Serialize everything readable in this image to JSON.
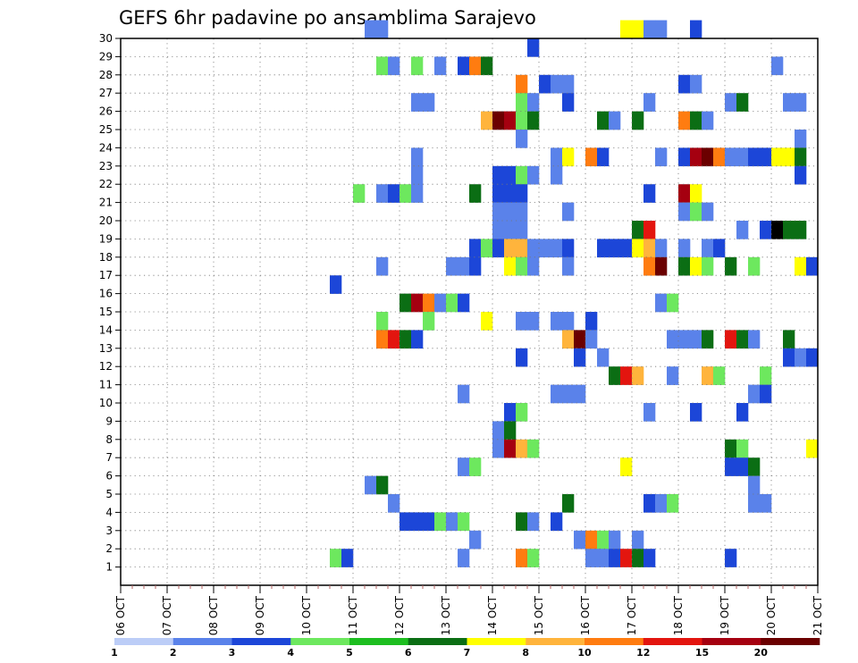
{
  "chart_data": {
    "type": "heatmap",
    "title": "GEFS 6hr padavine po ansamblima Sarajevo",
    "xlabel": "",
    "ylabel": "",
    "x_ticks": [
      "06 OCT",
      "07 OCT",
      "08 OCT",
      "09 OCT",
      "10 OCT",
      "11 OCT",
      "12 OCT",
      "13 OCT",
      "14 OCT",
      "15 OCT",
      "16 OCT",
      "17 OCT",
      "18 OCT",
      "19 OCT",
      "20 OCT",
      "21 OCT"
    ],
    "xlim": [
      "06 OCT 00Z",
      "21 OCT 00Z"
    ],
    "ylim": [
      0,
      30
    ],
    "y_ticks": [
      1,
      2,
      3,
      4,
      5,
      6,
      7,
      8,
      9,
      10,
      11,
      12,
      13,
      14,
      15,
      16,
      17,
      18,
      19,
      20,
      21,
      22,
      23,
      24,
      25,
      26,
      27,
      28,
      29,
      30
    ],
    "y_ticks_text": [
      "1",
      "2",
      "3",
      "4",
      "5",
      "6",
      "7",
      "8",
      "9",
      "10",
      "11",
      "12",
      "13",
      "14",
      "15",
      "16",
      "17",
      "18",
      "19",
      "20",
      "21",
      "22",
      "23",
      "24",
      "25",
      "26",
      "27",
      "28",
      "29",
      "30"
    ],
    "grid": true,
    "steps_per_day": 4,
    "colorbar": {
      "ticks": [
        "1",
        "2",
        "3",
        "4",
        "5",
        "6",
        "7",
        "8",
        "10",
        "12",
        "15",
        "20"
      ],
      "colors": [
        "#bccdf7",
        "#5a82ea",
        "#1c46d8",
        "#6de85e",
        "#1dbe20",
        "#0b6e14",
        "#ffff00",
        "#ffb43c",
        "#ff7c10",
        "#e3150f",
        "#a50010",
        "#6b0000"
      ]
    },
    "cells": [
      [
        30,
        21,
        1
      ],
      [
        30,
        22,
        1
      ],
      [
        30,
        43,
        6
      ],
      [
        30,
        44,
        6
      ],
      [
        30,
        45,
        1
      ],
      [
        30,
        46,
        1
      ],
      [
        30,
        49,
        2
      ],
      [
        29,
        35,
        2
      ],
      [
        28,
        22,
        3
      ],
      [
        28,
        23,
        1
      ],
      [
        28,
        25,
        3
      ],
      [
        28,
        27,
        1
      ],
      [
        28,
        29,
        2
      ],
      [
        28,
        30,
        8
      ],
      [
        28,
        31,
        5
      ],
      [
        28,
        56,
        1
      ],
      [
        27,
        34,
        8
      ],
      [
        27,
        36,
        2
      ],
      [
        27,
        37,
        1
      ],
      [
        27,
        38,
        1
      ],
      [
        27,
        48,
        2
      ],
      [
        27,
        49,
        1
      ],
      [
        26,
        25,
        1
      ],
      [
        26,
        26,
        1
      ],
      [
        26,
        34,
        3
      ],
      [
        26,
        35,
        1
      ],
      [
        26,
        38,
        2
      ],
      [
        26,
        45,
        1
      ],
      [
        26,
        52,
        1
      ],
      [
        26,
        53,
        5
      ],
      [
        26,
        57,
        1
      ],
      [
        26,
        58,
        1
      ],
      [
        25,
        31,
        7
      ],
      [
        25,
        32,
        11
      ],
      [
        25,
        33,
        10
      ],
      [
        25,
        34,
        3
      ],
      [
        25,
        35,
        5
      ],
      [
        25,
        41,
        5
      ],
      [
        25,
        42,
        1
      ],
      [
        25,
        44,
        5
      ],
      [
        25,
        48,
        8
      ],
      [
        25,
        49,
        5
      ],
      [
        25,
        50,
        1
      ],
      [
        24,
        34,
        1
      ],
      [
        24,
        58,
        1
      ],
      [
        23,
        25,
        1
      ],
      [
        23,
        37,
        1
      ],
      [
        23,
        38,
        6
      ],
      [
        23,
        40,
        8
      ],
      [
        23,
        41,
        2
      ],
      [
        23,
        46,
        1
      ],
      [
        23,
        48,
        2
      ],
      [
        23,
        49,
        10
      ],
      [
        23,
        50,
        11
      ],
      [
        23,
        51,
        8
      ],
      [
        23,
        52,
        1
      ],
      [
        23,
        53,
        1
      ],
      [
        23,
        54,
        2
      ],
      [
        23,
        55,
        2
      ],
      [
        23,
        56,
        6
      ],
      [
        23,
        57,
        6
      ],
      [
        23,
        58,
        5
      ],
      [
        22,
        25,
        1
      ],
      [
        22,
        32,
        2
      ],
      [
        22,
        33,
        2
      ],
      [
        22,
        34,
        3
      ],
      [
        22,
        35,
        1
      ],
      [
        22,
        37,
        1
      ],
      [
        22,
        58,
        2
      ],
      [
        21,
        20,
        3
      ],
      [
        21,
        22,
        1
      ],
      [
        21,
        23,
        2
      ],
      [
        21,
        24,
        3
      ],
      [
        21,
        25,
        1
      ],
      [
        21,
        30,
        5
      ],
      [
        21,
        32,
        2
      ],
      [
        21,
        33,
        2
      ],
      [
        21,
        34,
        2
      ],
      [
        21,
        45,
        2
      ],
      [
        21,
        48,
        10
      ],
      [
        21,
        49,
        6
      ],
      [
        20,
        32,
        1
      ],
      [
        20,
        33,
        1
      ],
      [
        20,
        34,
        1
      ],
      [
        20,
        38,
        1
      ],
      [
        20,
        48,
        1
      ],
      [
        20,
        49,
        3
      ],
      [
        20,
        50,
        1
      ],
      [
        19,
        32,
        1
      ],
      [
        19,
        33,
        1
      ],
      [
        19,
        34,
        1
      ],
      [
        19,
        44,
        5
      ],
      [
        19,
        45,
        9
      ],
      [
        19,
        53,
        1
      ],
      [
        19,
        55,
        2
      ],
      [
        19,
        56,
        12
      ],
      [
        19,
        57,
        5
      ],
      [
        19,
        58,
        5
      ],
      [
        18,
        30,
        2
      ],
      [
        18,
        31,
        3
      ],
      [
        18,
        32,
        2
      ],
      [
        18,
        33,
        7
      ],
      [
        18,
        34,
        7
      ],
      [
        18,
        35,
        1
      ],
      [
        18,
        36,
        1
      ],
      [
        18,
        37,
        1
      ],
      [
        18,
        38,
        2
      ],
      [
        18,
        41,
        2
      ],
      [
        18,
        42,
        2
      ],
      [
        18,
        43,
        2
      ],
      [
        18,
        44,
        6
      ],
      [
        18,
        45,
        7
      ],
      [
        18,
        46,
        1
      ],
      [
        18,
        48,
        1
      ],
      [
        18,
        50,
        1
      ],
      [
        18,
        51,
        2
      ],
      [
        17,
        22,
        1
      ],
      [
        17,
        28,
        1
      ],
      [
        17,
        29,
        1
      ],
      [
        17,
        30,
        2
      ],
      [
        17,
        33,
        6
      ],
      [
        17,
        34,
        3
      ],
      [
        17,
        35,
        1
      ],
      [
        17,
        38,
        1
      ],
      [
        17,
        45,
        8
      ],
      [
        17,
        46,
        11
      ],
      [
        17,
        48,
        5
      ],
      [
        17,
        49,
        6
      ],
      [
        17,
        50,
        3
      ],
      [
        17,
        52,
        5
      ],
      [
        17,
        54,
        3
      ],
      [
        17,
        58,
        6
      ],
      [
        17,
        59,
        2
      ],
      [
        16,
        18,
        2
      ],
      [
        15,
        24,
        5
      ],
      [
        15,
        25,
        10
      ],
      [
        15,
        26,
        8
      ],
      [
        15,
        27,
        1
      ],
      [
        15,
        28,
        3
      ],
      [
        15,
        29,
        2
      ],
      [
        15,
        46,
        1
      ],
      [
        15,
        47,
        3
      ],
      [
        14,
        22,
        3
      ],
      [
        14,
        26,
        3
      ],
      [
        14,
        31,
        6
      ],
      [
        14,
        34,
        1
      ],
      [
        14,
        35,
        1
      ],
      [
        14,
        37,
        1
      ],
      [
        14,
        38,
        1
      ],
      [
        14,
        40,
        2
      ],
      [
        13,
        22,
        8
      ],
      [
        13,
        23,
        9
      ],
      [
        13,
        24,
        5
      ],
      [
        13,
        25,
        2
      ],
      [
        13,
        38,
        7
      ],
      [
        13,
        39,
        11
      ],
      [
        13,
        40,
        1
      ],
      [
        13,
        47,
        1
      ],
      [
        13,
        48,
        1
      ],
      [
        13,
        49,
        1
      ],
      [
        13,
        50,
        5
      ],
      [
        13,
        52,
        9
      ],
      [
        13,
        53,
        5
      ],
      [
        13,
        54,
        1
      ],
      [
        13,
        57,
        5
      ],
      [
        12,
        34,
        2
      ],
      [
        12,
        39,
        2
      ],
      [
        12,
        41,
        1
      ],
      [
        12,
        57,
        2
      ],
      [
        12,
        58,
        1
      ],
      [
        12,
        59,
        2
      ],
      [
        11,
        42,
        5
      ],
      [
        11,
        43,
        9
      ],
      [
        11,
        44,
        7
      ],
      [
        11,
        47,
        1
      ],
      [
        11,
        50,
        7
      ],
      [
        11,
        51,
        3
      ],
      [
        11,
        55,
        3
      ],
      [
        10,
        29,
        1
      ],
      [
        10,
        37,
        1
      ],
      [
        10,
        38,
        1
      ],
      [
        10,
        39,
        1
      ],
      [
        10,
        54,
        1
      ],
      [
        10,
        55,
        2
      ],
      [
        9,
        33,
        2
      ],
      [
        9,
        34,
        3
      ],
      [
        9,
        45,
        1
      ],
      [
        9,
        49,
        2
      ],
      [
        9,
        53,
        2
      ],
      [
        8,
        32,
        1
      ],
      [
        8,
        33,
        5
      ],
      [
        7,
        32,
        1
      ],
      [
        7,
        33,
        10
      ],
      [
        7,
        34,
        7
      ],
      [
        7,
        35,
        3
      ],
      [
        7,
        52,
        5
      ],
      [
        7,
        53,
        3
      ],
      [
        7,
        59,
        6
      ],
      [
        6,
        29,
        1
      ],
      [
        6,
        30,
        3
      ],
      [
        6,
        43,
        6
      ],
      [
        6,
        52,
        2
      ],
      [
        6,
        53,
        2
      ],
      [
        6,
        54,
        5
      ],
      [
        5,
        21,
        1
      ],
      [
        5,
        22,
        5
      ],
      [
        5,
        54,
        1
      ],
      [
        4,
        23,
        1
      ],
      [
        4,
        38,
        5
      ],
      [
        4,
        45,
        2
      ],
      [
        4,
        46,
        1
      ],
      [
        4,
        47,
        3
      ],
      [
        4,
        54,
        1
      ],
      [
        4,
        55,
        1
      ],
      [
        3,
        24,
        2
      ],
      [
        3,
        25,
        2
      ],
      [
        3,
        26,
        2
      ],
      [
        3,
        27,
        3
      ],
      [
        3,
        28,
        1
      ],
      [
        3,
        29,
        3
      ],
      [
        3,
        34,
        5
      ],
      [
        3,
        35,
        1
      ],
      [
        3,
        37,
        2
      ],
      [
        2,
        30,
        1
      ],
      [
        2,
        39,
        1
      ],
      [
        2,
        40,
        8
      ],
      [
        2,
        41,
        3
      ],
      [
        2,
        42,
        1
      ],
      [
        2,
        44,
        1
      ],
      [
        1,
        18,
        3
      ],
      [
        1,
        19,
        2
      ],
      [
        1,
        29,
        1
      ],
      [
        1,
        34,
        8
      ],
      [
        1,
        35,
        3
      ],
      [
        1,
        40,
        1
      ],
      [
        1,
        41,
        1
      ],
      [
        1,
        42,
        2
      ],
      [
        1,
        43,
        9
      ],
      [
        1,
        44,
        5
      ],
      [
        1,
        45,
        2
      ],
      [
        1,
        52,
        2
      ]
    ]
  }
}
